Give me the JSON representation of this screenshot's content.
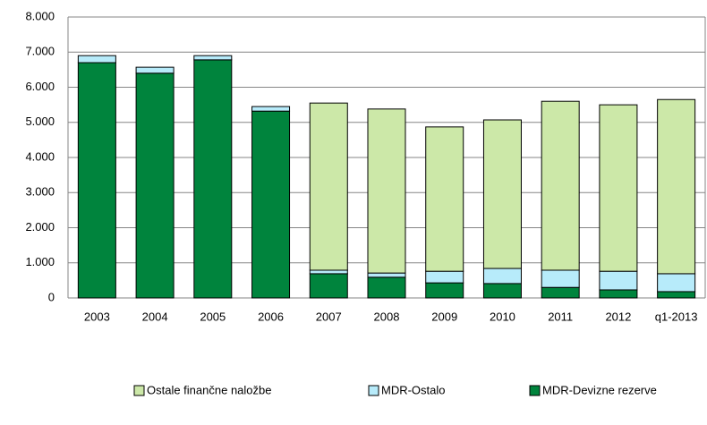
{
  "chart_data": {
    "type": "stacked_bar",
    "categories": [
      "2003",
      "2004",
      "2005",
      "2006",
      "2007",
      "2008",
      "2009",
      "2010",
      "2011",
      "2012",
      "q1-2013"
    ],
    "series": [
      {
        "name": "Ostale finančne naložbe",
        "color": "#cce8a8",
        "values": [
          0,
          0,
          0,
          0,
          4760,
          4670,
          4110,
          4230,
          4810,
          4740,
          4960
        ]
      },
      {
        "name": "MDR-Ostalo",
        "color": "#b7ebfa",
        "values": [
          200,
          170,
          120,
          130,
          100,
          120,
          330,
          430,
          490,
          530,
          510
        ]
      },
      {
        "name": "MDR-Devizne rezerve",
        "color": "#00843d",
        "values": [
          6700,
          6400,
          6780,
          5320,
          690,
          590,
          430,
          410,
          300,
          230,
          180
        ]
      }
    ],
    "ylim": [
      0,
      8000
    ],
    "yticks": [
      0,
      {
        "value": 1000,
        "label": "1.000"
      },
      {
        "value": 2000,
        "label": "2.000"
      },
      {
        "value": 3000,
        "label": "3.000"
      },
      {
        "value": 4000,
        "label": "4.000"
      },
      {
        "value": 5000,
        "label": "5.000"
      },
      {
        "value": 6000,
        "label": "6.000"
      },
      {
        "value": 7000,
        "label": "7.000"
      },
      {
        "value": 8000,
        "label": "8.000"
      }
    ],
    "grid": true,
    "legend": "bottom"
  }
}
